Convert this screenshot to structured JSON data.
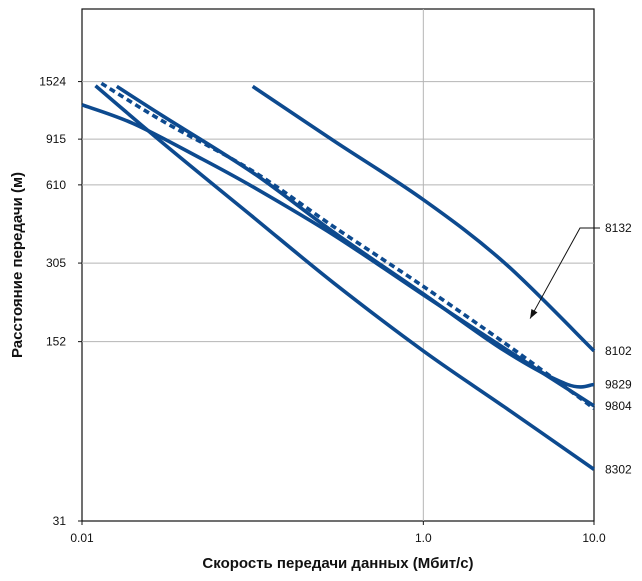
{
  "chart_data": {
    "type": "line",
    "title": "",
    "xlabel": "Скорость передачи данных (Мбит/с)",
    "ylabel": "Расстояние передачи (м)",
    "x_scale": "log",
    "y_scale": "log",
    "xlim": [
      0.01,
      10.0
    ],
    "ylim": [
      31,
      2900
    ],
    "x_ticks": [
      {
        "value": 0.01,
        "label": "0.01"
      },
      {
        "value": 1.0,
        "label": "1.0"
      },
      {
        "value": 10.0,
        "label": "10.0"
      }
    ],
    "y_ticks": [
      {
        "value": 31,
        "label": "31"
      },
      {
        "value": 152,
        "label": "152"
      },
      {
        "value": 305,
        "label": "305"
      },
      {
        "value": 610,
        "label": "610"
      },
      {
        "value": 915,
        "label": "915"
      },
      {
        "value": 1524,
        "label": "1524"
      }
    ],
    "grid": {
      "vertical_at": [
        1.0
      ],
      "horizontal_at": [
        152,
        305,
        610,
        915,
        1524
      ]
    },
    "line_color": "#0d4a8f",
    "series": [
      {
        "name": "8132",
        "style": "dashed",
        "label_point": [
          4.0,
          180
        ],
        "x": [
          0.013,
          0.03,
          0.1,
          0.3,
          1.0,
          3.0,
          7.0,
          10.0
        ],
        "y": [
          1500,
          1070,
          690,
          420,
          248,
          150,
          100,
          84
        ]
      },
      {
        "name": "8102",
        "style": "solid",
        "x": [
          0.1,
          0.3,
          1.0,
          3.0,
          10.0
        ],
        "y": [
          1460,
          900,
          535,
          305,
          140
        ]
      },
      {
        "name": "9829",
        "style": "solid",
        "x": [
          0.016,
          0.03,
          0.1,
          0.3,
          1.0,
          3.0,
          7.0,
          10.0
        ],
        "y": [
          1460,
          1120,
          680,
          400,
          232,
          140,
          104,
          104
        ]
      },
      {
        "name": "9804",
        "style": "solid",
        "x": [
          0.01,
          0.02,
          0.05,
          0.1,
          0.3,
          1.0,
          3.0,
          10.0
        ],
        "y": [
          1240,
          1050,
          770,
          600,
          390,
          230,
          143,
          86
        ]
      },
      {
        "name": "8302",
        "style": "solid",
        "x": [
          0.012,
          0.03,
          0.1,
          0.3,
          1.0,
          3.0,
          10.0
        ],
        "y": [
          1470,
          880,
          460,
          255,
          140,
          85,
          49
        ]
      }
    ]
  }
}
